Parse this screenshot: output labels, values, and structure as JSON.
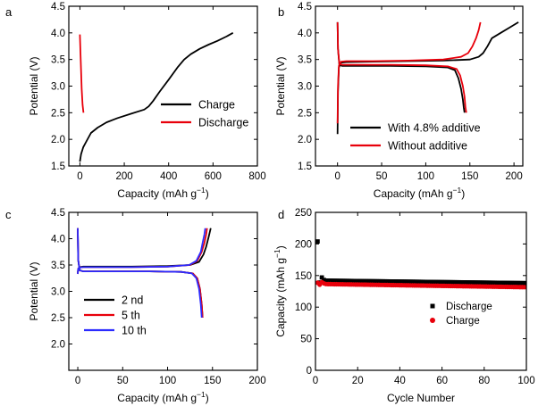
{
  "chart_data": [
    {
      "panel": "a",
      "type": "line",
      "xlabel": "Capacity (mAh g−1)",
      "ylabel": "Potential (V)",
      "xlim": [
        -50,
        800
      ],
      "ylim": [
        1.5,
        4.5
      ],
      "xticks": [
        0,
        200,
        400,
        600,
        800
      ],
      "yticks": [
        1.5,
        2.0,
        2.5,
        3.0,
        3.5,
        4.0,
        4.5
      ],
      "legend": "lower-right",
      "series": [
        {
          "name": "Charge",
          "color": "#000000",
          "x": [
            0,
            5,
            15,
            30,
            50,
            80,
            120,
            170,
            230,
            290,
            310,
            330,
            360,
            400,
            440,
            470,
            500,
            540,
            580,
            620,
            660,
            690
          ],
          "y": [
            1.58,
            1.72,
            1.85,
            1.97,
            2.12,
            2.22,
            2.32,
            2.4,
            2.48,
            2.56,
            2.62,
            2.72,
            2.9,
            3.12,
            3.35,
            3.5,
            3.6,
            3.7,
            3.78,
            3.85,
            3.93,
            4.0
          ]
        },
        {
          "name": "Discharge",
          "color": "#e8000b",
          "x": [
            0,
            2,
            5,
            8,
            12,
            16
          ],
          "y": [
            3.97,
            3.7,
            3.3,
            2.95,
            2.65,
            2.5
          ]
        }
      ]
    },
    {
      "panel": "b",
      "type": "line",
      "xlabel": "Capacity (mAh g−1)",
      "ylabel": "Potential (V)",
      "xlim": [
        -25,
        210
      ],
      "ylim": [
        1.5,
        4.5
      ],
      "xticks": [
        0,
        50,
        100,
        150,
        200
      ],
      "yticks": [
        1.5,
        2.0,
        2.5,
        3.0,
        3.5,
        4.0,
        4.5
      ],
      "legend": "lower-right",
      "series": [
        {
          "name": "With 4.8% additive",
          "color": "#000000",
          "charge_x": [
            0,
            0.5,
            1.5,
            4,
            10,
            40,
            80,
            120,
            150,
            160,
            165,
            170,
            175,
            185,
            195,
            205
          ],
          "charge_y": [
            2.1,
            2.9,
            3.35,
            3.44,
            3.45,
            3.46,
            3.47,
            3.48,
            3.5,
            3.55,
            3.62,
            3.75,
            3.9,
            4.0,
            4.1,
            4.2
          ],
          "discharge_x": [
            0,
            0.5,
            2,
            5,
            20,
            60,
            100,
            125,
            133,
            137,
            140,
            142,
            143,
            144
          ],
          "discharge_y": [
            4.2,
            3.7,
            3.4,
            3.38,
            3.38,
            3.38,
            3.37,
            3.35,
            3.3,
            3.15,
            2.95,
            2.75,
            2.6,
            2.5
          ]
        },
        {
          "name": "Without additive",
          "color": "#e8000b",
          "charge_x": [
            0,
            0.5,
            1.5,
            4,
            10,
            40,
            80,
            120,
            140,
            148,
            153,
            157,
            160,
            162
          ],
          "charge_y": [
            2.3,
            3.0,
            3.38,
            3.46,
            3.47,
            3.47,
            3.48,
            3.5,
            3.55,
            3.62,
            3.75,
            3.9,
            4.05,
            4.2
          ],
          "discharge_x": [
            0,
            0.5,
            2,
            5,
            20,
            60,
            100,
            125,
            135,
            139,
            142,
            144,
            145,
            146
          ],
          "discharge_y": [
            4.2,
            3.7,
            3.42,
            3.4,
            3.4,
            3.4,
            3.39,
            3.37,
            3.32,
            3.2,
            3.0,
            2.8,
            2.6,
            2.5
          ]
        }
      ]
    },
    {
      "panel": "c",
      "type": "line",
      "xlabel": "Capacity (mAh g−1)",
      "ylabel": "Potential (V)",
      "xlim": [
        -10,
        200
      ],
      "ylim": [
        1.5,
        4.5
      ],
      "xticks": [
        0,
        50,
        100,
        150,
        200
      ],
      "yticks": [
        2.0,
        2.5,
        3.0,
        3.5,
        4.0,
        4.5
      ],
      "legend": "lower-left",
      "series": [
        {
          "name": "2 nd",
          "color": "#000000",
          "charge_x": [
            0,
            0.5,
            2,
            6,
            20,
            60,
            100,
            125,
            135,
            140,
            143,
            146,
            148
          ],
          "charge_y": [
            3.35,
            3.43,
            3.46,
            3.47,
            3.47,
            3.47,
            3.48,
            3.5,
            3.56,
            3.7,
            3.85,
            4.05,
            4.2
          ],
          "discharge_x": [
            0,
            0.5,
            2,
            6,
            30,
            80,
            115,
            128,
            133,
            136,
            138,
            139
          ],
          "discharge_y": [
            4.2,
            3.6,
            3.4,
            3.38,
            3.38,
            3.38,
            3.37,
            3.34,
            3.25,
            3.05,
            2.75,
            2.5
          ]
        },
        {
          "name": "5 th",
          "color": "#e8000b",
          "charge_x": [
            0,
            0.5,
            2,
            6,
            20,
            60,
            100,
            125,
            133,
            138,
            141,
            143,
            144
          ],
          "charge_y": [
            3.33,
            3.43,
            3.45,
            3.46,
            3.46,
            3.46,
            3.47,
            3.5,
            3.58,
            3.75,
            3.92,
            4.08,
            4.2
          ],
          "discharge_x": [
            0,
            0.5,
            2,
            6,
            30,
            80,
            115,
            128,
            133,
            136,
            138,
            139
          ],
          "discharge_y": [
            4.2,
            3.6,
            3.4,
            3.38,
            3.38,
            3.38,
            3.37,
            3.34,
            3.25,
            3.05,
            2.75,
            2.5
          ]
        },
        {
          "name": "10 th",
          "color": "#2b2bff",
          "charge_x": [
            0,
            0.5,
            2,
            6,
            20,
            60,
            100,
            124,
            132,
            137,
            139,
            141,
            142
          ],
          "charge_y": [
            3.33,
            3.43,
            3.45,
            3.46,
            3.46,
            3.46,
            3.47,
            3.5,
            3.58,
            3.75,
            3.92,
            4.08,
            4.2
          ],
          "discharge_x": [
            0,
            0.5,
            2,
            6,
            30,
            80,
            115,
            127,
            132,
            135,
            137,
            138
          ],
          "discharge_y": [
            4.2,
            3.6,
            3.4,
            3.38,
            3.38,
            3.38,
            3.37,
            3.34,
            3.25,
            3.05,
            2.75,
            2.5
          ]
        }
      ]
    },
    {
      "panel": "d",
      "type": "scatter",
      "xlabel": "Cycle Number",
      "ylabel": "Capacity (mAh g−1)",
      "xlim": [
        0,
        100
      ],
      "ylim": [
        0,
        250
      ],
      "xticks": [
        0,
        20,
        40,
        60,
        80,
        100
      ],
      "yticks": [
        0,
        50,
        100,
        150,
        200,
        250
      ],
      "legend": "center-right",
      "series": [
        {
          "name": "Discharge",
          "color": "#000000",
          "marker": "square",
          "first_values": [
            204,
            139,
            147,
            143
          ],
          "start_value": 142,
          "end_value": 138,
          "cycles": 100
        },
        {
          "name": "Charge",
          "color": "#e8000b",
          "marker": "circle",
          "first_values": [
            140,
            137,
            141,
            139
          ],
          "start_value": 138,
          "end_value": 133,
          "cycles": 100
        }
      ]
    }
  ],
  "panel_labels": [
    "a",
    "b",
    "c",
    "d"
  ],
  "legends": {
    "a": [
      "Charge",
      "Discharge"
    ],
    "b": [
      "With 4.8% additive",
      "Without additive"
    ],
    "c": [
      "2 nd",
      "5 th",
      "10 th"
    ],
    "d": [
      "Discharge",
      "Charge"
    ]
  },
  "axis_text": {
    "capacity_label": "Capacity (mAh g",
    "superscript": "−1",
    "close_paren": ")",
    "potential_label": "Potential (V)",
    "capacity_label_d": "Capacity (mAh g",
    "cycle_label": "Cycle Number"
  }
}
